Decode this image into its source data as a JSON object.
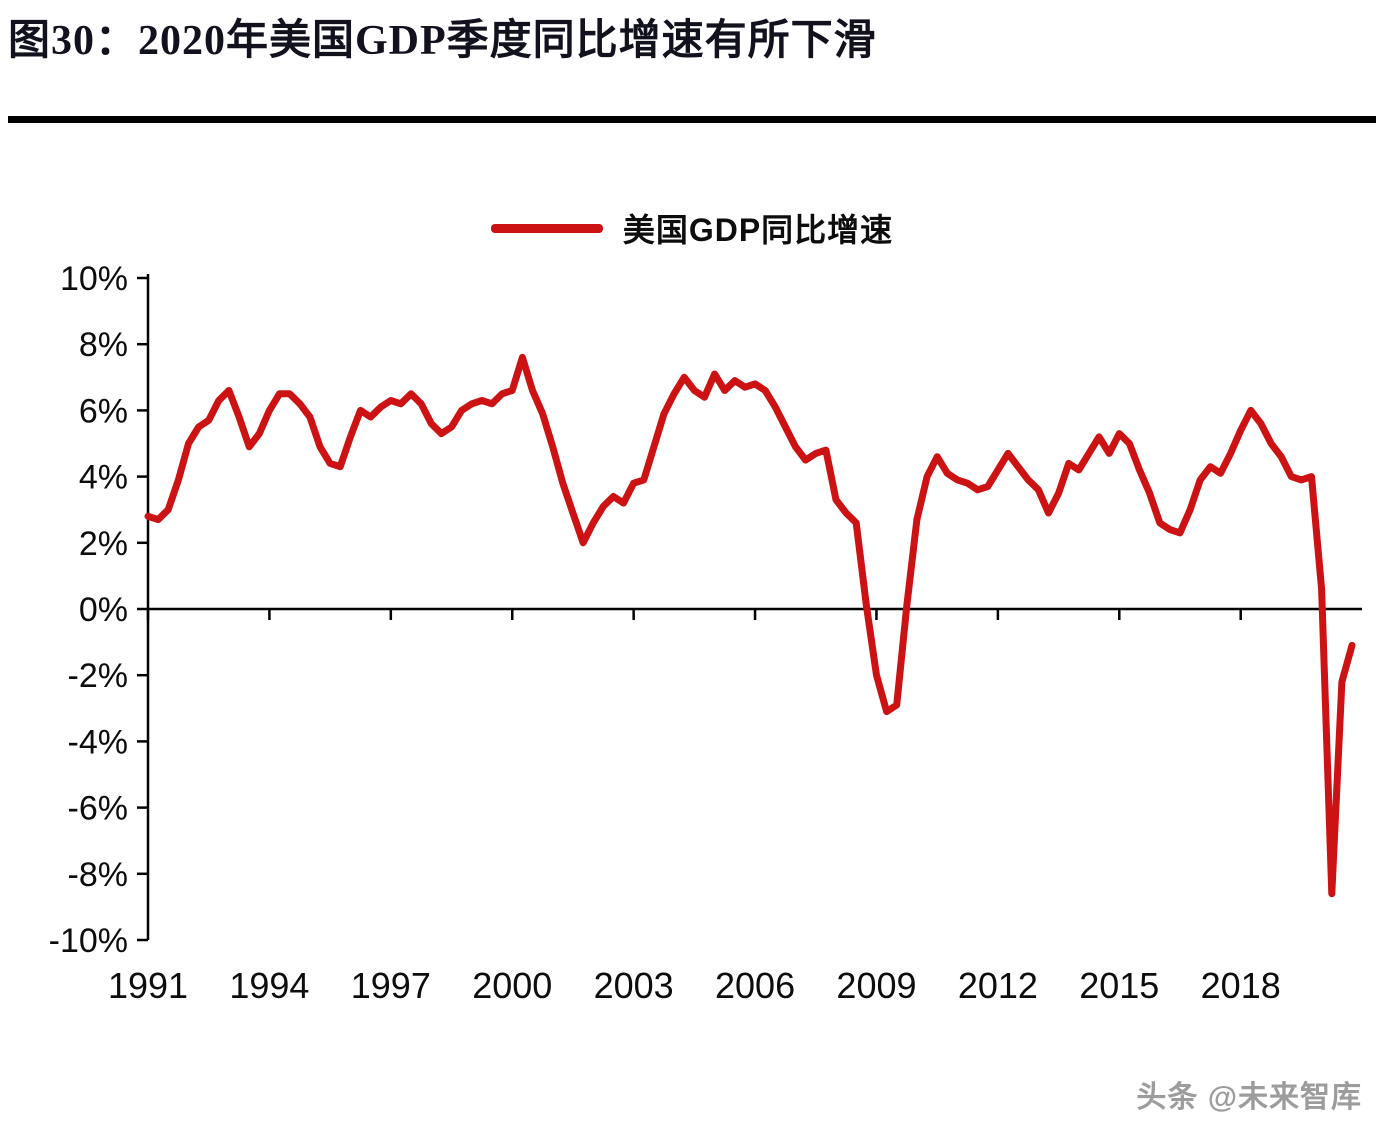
{
  "figure": {
    "title": "图30：2020年美国GDP季度同比增速有所下滑"
  },
  "watermark": {
    "text": "头条 @未来智库"
  },
  "chart_data": {
    "type": "line",
    "title": "图30：2020年美国GDP季度同比增速有所下滑",
    "legend": [
      "美国GDP同比增速"
    ],
    "legend_position": "top-center",
    "line_color": "#cc1212",
    "axis_color": "#000000",
    "grid": false,
    "x_start_year": 1991,
    "points_per_year": 4,
    "xtick_years": [
      1991,
      1994,
      1997,
      2000,
      2003,
      2006,
      2009,
      2012,
      2015,
      2018
    ],
    "xtick_labels": [
      "1991",
      "1994",
      "1997",
      "2000",
      "2003",
      "2006",
      "2009",
      "2012",
      "2015",
      "2018"
    ],
    "ylim": [
      -10,
      10
    ],
    "ytick_step": 2,
    "ytick_suffix": "%",
    "ytick_labels": [
      "10%",
      "8%",
      "6%",
      "4%",
      "2%",
      "0%",
      "-2%",
      "-4%",
      "-6%",
      "-8%",
      "-10%"
    ],
    "series": [
      {
        "name": "美国GDP同比增速",
        "values": [
          2.8,
          2.7,
          3.0,
          3.9,
          5.0,
          5.5,
          5.7,
          6.3,
          6.6,
          5.8,
          4.9,
          5.3,
          6.0,
          6.5,
          6.5,
          6.2,
          5.8,
          4.9,
          4.4,
          4.3,
          5.2,
          6.0,
          5.8,
          6.1,
          6.3,
          6.2,
          6.5,
          6.2,
          5.6,
          5.3,
          5.5,
          6.0,
          6.2,
          6.3,
          6.2,
          6.5,
          6.6,
          7.6,
          6.6,
          5.9,
          4.9,
          3.8,
          2.9,
          2.0,
          2.6,
          3.1,
          3.4,
          3.2,
          3.8,
          3.9,
          4.9,
          5.9,
          6.5,
          7.0,
          6.6,
          6.4,
          7.1,
          6.6,
          6.9,
          6.7,
          6.8,
          6.6,
          6.1,
          5.5,
          4.9,
          4.5,
          4.7,
          4.8,
          3.3,
          2.9,
          2.6,
          0.1,
          -2.0,
          -3.1,
          -2.9,
          0.1,
          2.7,
          4.0,
          4.6,
          4.1,
          3.9,
          3.8,
          3.6,
          3.7,
          4.2,
          4.7,
          4.3,
          3.9,
          3.6,
          2.9,
          3.5,
          4.4,
          4.2,
          4.7,
          5.2,
          4.7,
          5.3,
          5.0,
          4.2,
          3.5,
          2.6,
          2.4,
          2.3,
          3.0,
          3.9,
          4.3,
          4.1,
          4.7,
          5.4,
          6.0,
          5.6,
          5.0,
          4.6,
          4.0,
          3.9,
          4.0,
          0.6,
          -8.6,
          -2.2,
          -1.1
        ]
      }
    ]
  }
}
